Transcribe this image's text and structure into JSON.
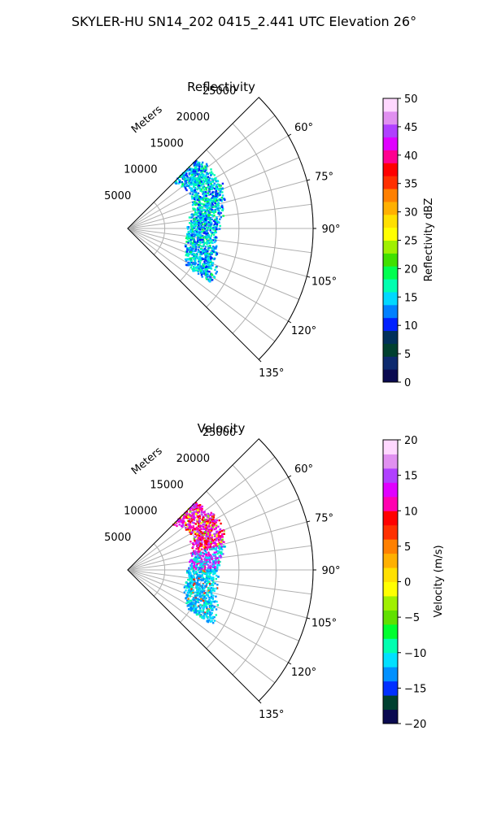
{
  "figure_title": "SKYLER-HU  SN14_202  0415_2.441 UTC Elevation 26°",
  "colors": {
    "grid": "#b0b0b0",
    "frame": "#000000"
  },
  "chart_data": [
    {
      "type": "scatter",
      "chart_kind": "polar sector (PPI)",
      "title": "Reflectivity",
      "radial_label": "Meters",
      "radial_ticks": [
        "5000",
        "10000",
        "15000",
        "20000",
        "25000"
      ],
      "radial_tick_values": [
        5000,
        10000,
        15000,
        20000,
        25000
      ],
      "rlim": [
        0,
        25000
      ],
      "angle_ticks": [
        "60°",
        "75°",
        "90°",
        "105°",
        "120°",
        "135°"
      ],
      "angle_tick_values": [
        60,
        75,
        90,
        105,
        120,
        135
      ],
      "theta_range_deg": [
        45,
        135
      ],
      "grid": true,
      "field": {
        "echo_range_m": [
          8000,
          14500
        ],
        "echo_azimuth_deg": [
          45,
          123
        ],
        "note_values_dbz": {
          "typical_min": 10,
          "typical_max": 20
        }
      },
      "colorbar": {
        "label": "Reflectivity dBZ",
        "ticks": [
          "0",
          "5",
          "10",
          "15",
          "20",
          "25",
          "30",
          "35",
          "40",
          "45",
          "50"
        ],
        "range": [
          0,
          50
        ],
        "stops": [
          "#0a0a50",
          "#0d2a6e",
          "#004030",
          "#00305a",
          "#0020ff",
          "#0080ff",
          "#00d8ff",
          "#00ffb0",
          "#00ff50",
          "#40e000",
          "#a0f000",
          "#ffff00",
          "#ffe000",
          "#ffb000",
          "#ff8000",
          "#ff3000",
          "#ff0000",
          "#ff0090",
          "#e000ff",
          "#b040ff",
          "#e090f0",
          "#ffd8ff"
        ]
      }
    },
    {
      "type": "scatter",
      "chart_kind": "polar sector (PPI)",
      "title": "Velocity",
      "radial_label": "Meters",
      "radial_ticks": [
        "5000",
        "10000",
        "15000",
        "20000",
        "25000"
      ],
      "radial_tick_values": [
        5000,
        10000,
        15000,
        20000,
        25000
      ],
      "rlim": [
        0,
        25000
      ],
      "angle_ticks": [
        "60°",
        "75°",
        "90°",
        "105°",
        "120°",
        "135°"
      ],
      "angle_tick_values": [
        60,
        75,
        90,
        105,
        120,
        135
      ],
      "theta_range_deg": [
        45,
        135
      ],
      "grid": true,
      "field": {
        "echo_range_m": [
          8000,
          14500
        ],
        "echo_azimuth_deg": [
          45,
          123
        ],
        "note_values_ms": {
          "north_part": 15,
          "south_part": -12
        }
      },
      "colorbar": {
        "label": "Velocity (m/s)",
        "ticks": [
          "−20",
          "−15",
          "−10",
          "−5",
          "0",
          "5",
          "10",
          "15",
          "20"
        ],
        "range": [
          -20,
          20
        ],
        "stops": [
          "#0a0a50",
          "#004030",
          "#0030ff",
          "#0090ff",
          "#00e0ff",
          "#00ffb0",
          "#00ff30",
          "#60e000",
          "#a0f000",
          "#ffff00",
          "#ffe000",
          "#ffb000",
          "#ff8000",
          "#ff3000",
          "#ff0000",
          "#ff00b0",
          "#e000ff",
          "#b040ff",
          "#e090f0",
          "#ffd8ff"
        ]
      }
    }
  ]
}
